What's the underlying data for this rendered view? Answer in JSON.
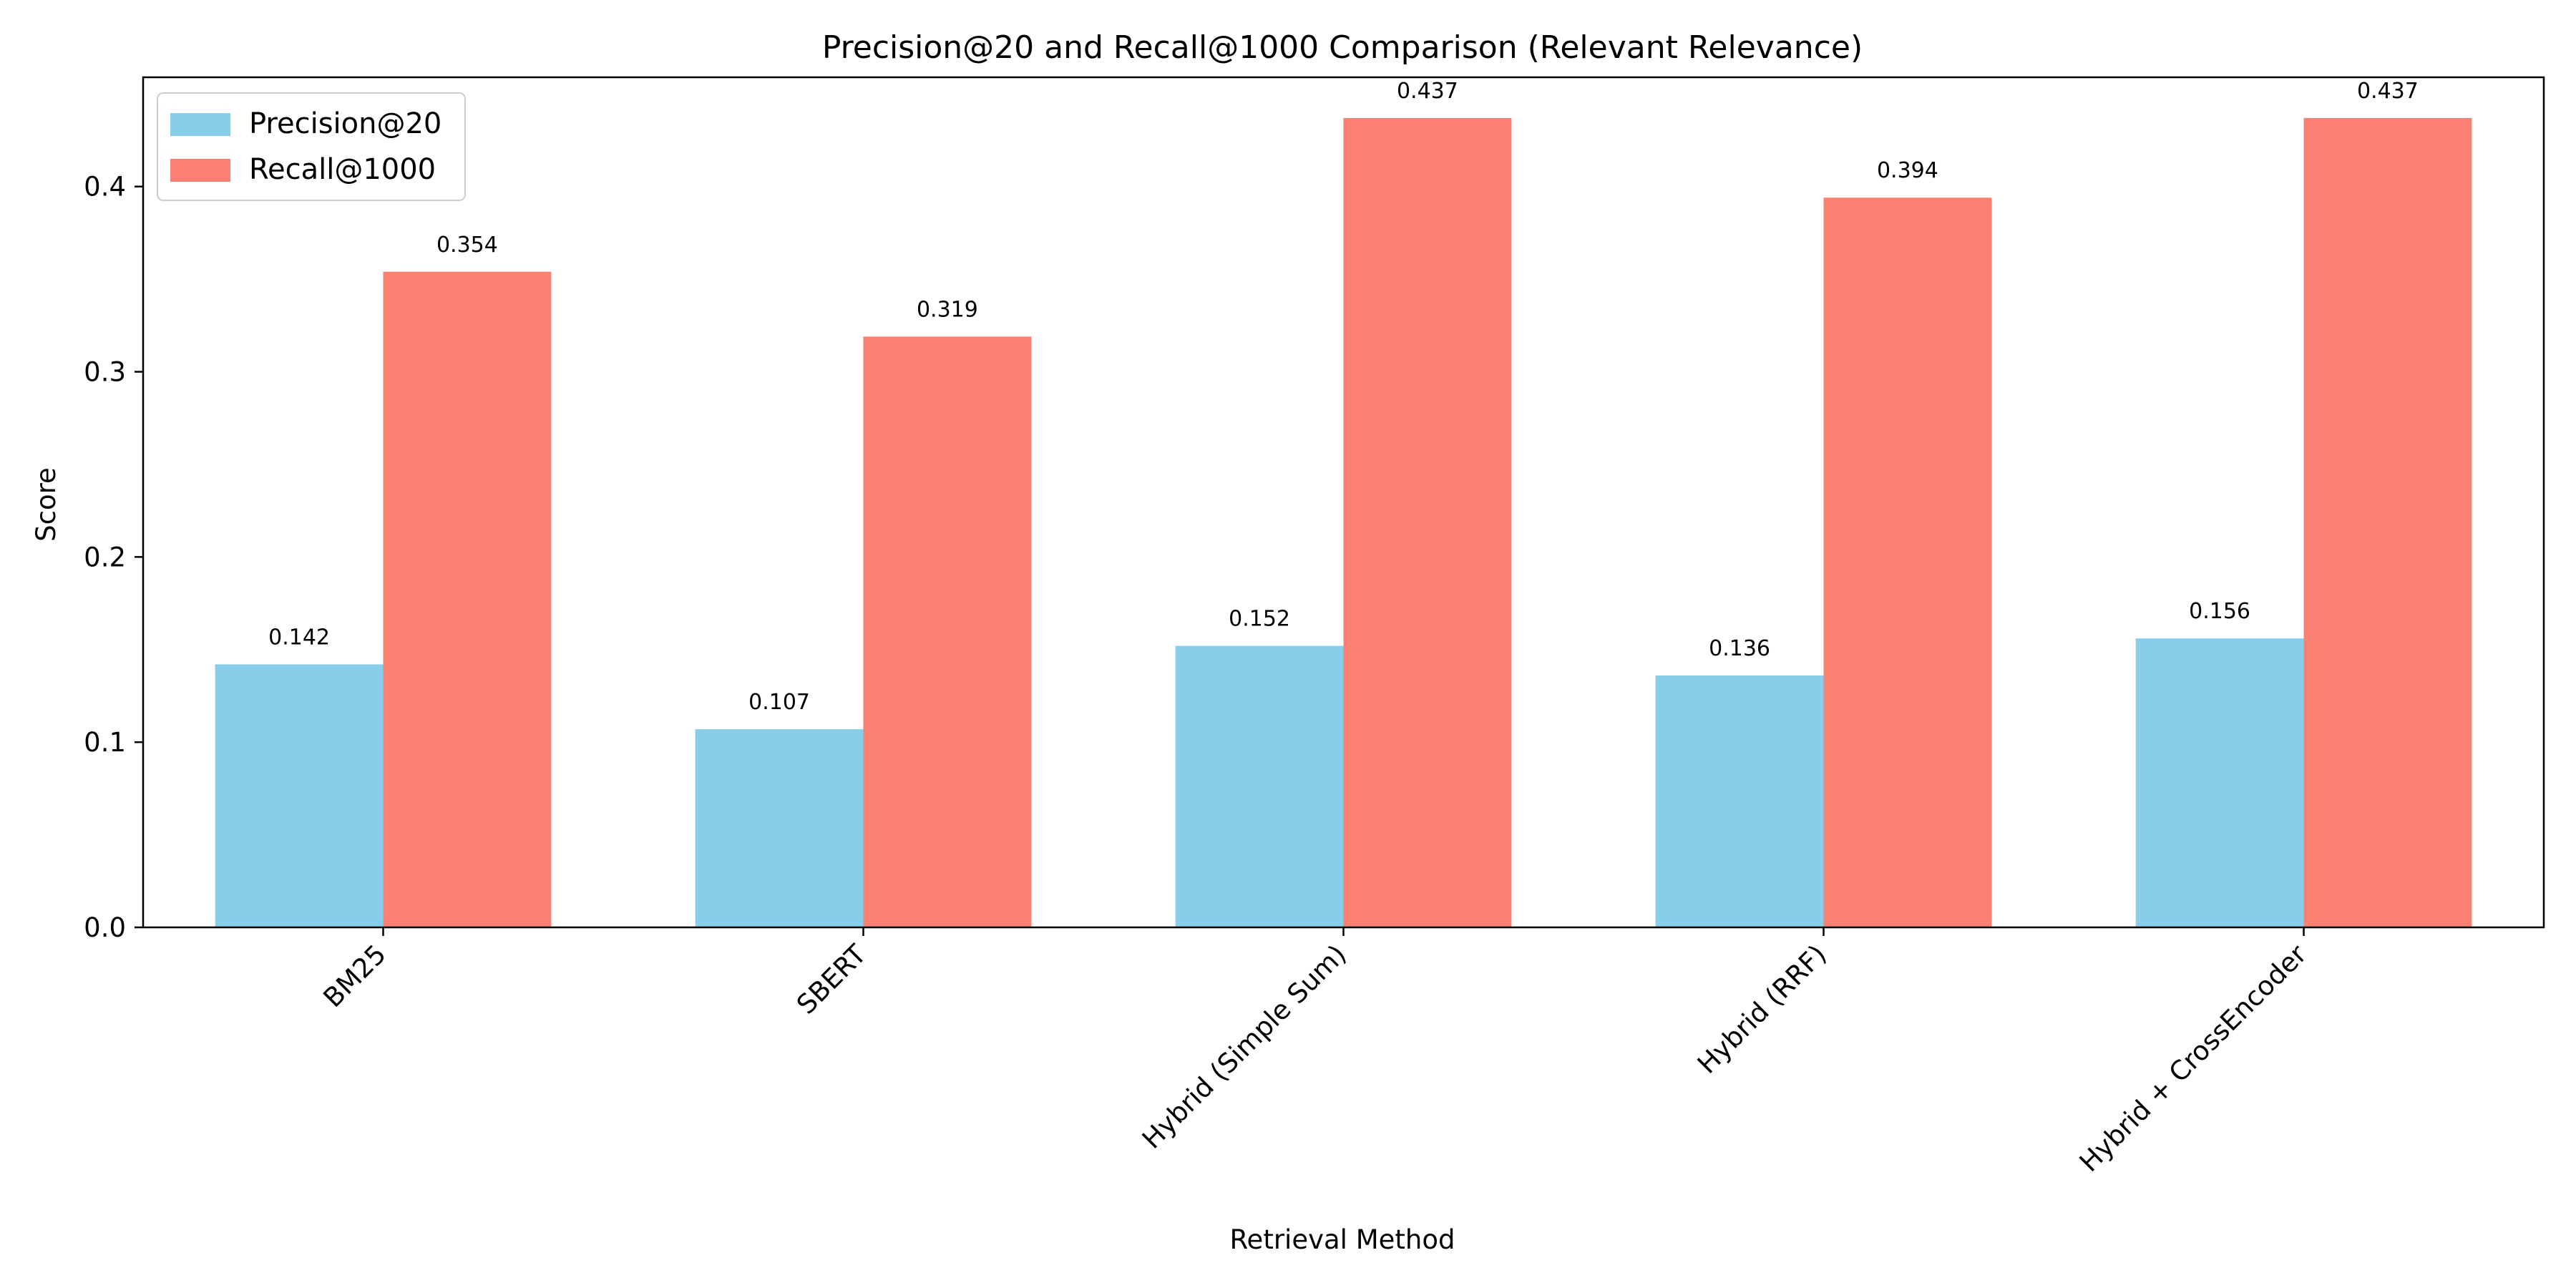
{
  "chart_data": {
    "type": "bar",
    "title": "Precision@20 and Recall@1000 Comparison (Relevant Relevance)",
    "xlabel": "Retrieval Method",
    "ylabel": "Score",
    "categories": [
      "BM25",
      "SBERT",
      "Hybrid (Simple Sum)",
      "Hybrid (RRF)",
      "Hybrid + CrossEncoder"
    ],
    "series": [
      {
        "name": "Precision@20",
        "values": [
          0.142,
          0.107,
          0.152,
          0.136,
          0.156
        ],
        "labels": [
          "0.142",
          "0.107",
          "0.152",
          "0.136",
          "0.156"
        ],
        "color": "#87ceeb"
      },
      {
        "name": "Recall@1000",
        "values": [
          0.354,
          0.319,
          0.437,
          0.394,
          0.437
        ],
        "labels": [
          "0.354",
          "0.319",
          "0.437",
          "0.394",
          "0.437"
        ],
        "color": "#fa8072"
      }
    ],
    "ylim": [
      0,
      0.459
    ],
    "yticks": [
      0.0,
      0.1,
      0.2,
      0.3,
      0.4
    ],
    "ytick_labels": [
      "0.0",
      "0.1",
      "0.2",
      "0.3",
      "0.4"
    ],
    "grid": false,
    "legend": "top-left"
  }
}
